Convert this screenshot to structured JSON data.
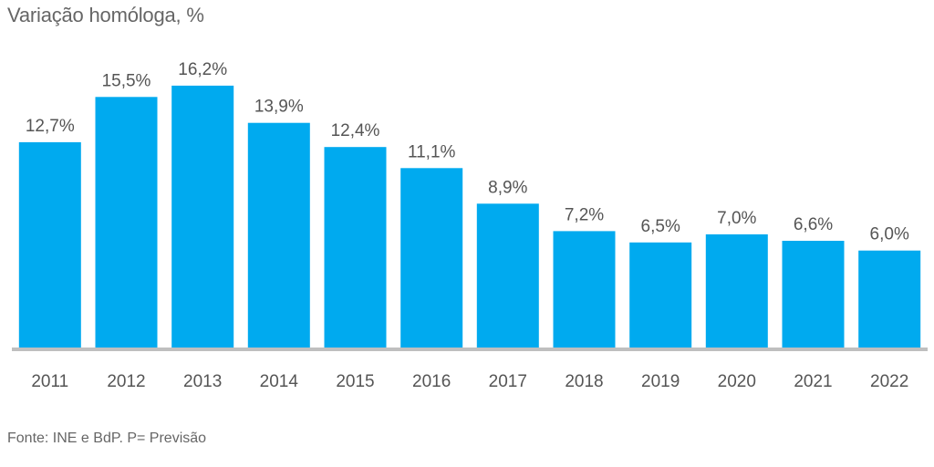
{
  "colors": {
    "bar": "#00AAEF",
    "axis": "#BFBFBF",
    "text": "#555555"
  },
  "chart_data": {
    "type": "bar",
    "title": "",
    "subtitle": "Variação homóloga, %",
    "source": "Fonte: INE e BdP. P= Previsão",
    "xlabel": "",
    "ylabel": "",
    "ylim": [
      0,
      18
    ],
    "grid": false,
    "categories": [
      "2011",
      "2012",
      "2013",
      "2014",
      "2015",
      "2016",
      "2017",
      "2018",
      "2019",
      "2020",
      "2021",
      "2022"
    ],
    "values": [
      12.7,
      15.5,
      16.2,
      13.9,
      12.4,
      11.1,
      8.9,
      7.2,
      6.5,
      7.0,
      6.6,
      6.0
    ],
    "labels": [
      "12,7%",
      "15,5%",
      "16,2%",
      "13,9%",
      "12,4%",
      "11,1%",
      "8,9%",
      "7,2%",
      "6,5%",
      "7,0%",
      "6,6%",
      "6,0%"
    ]
  }
}
